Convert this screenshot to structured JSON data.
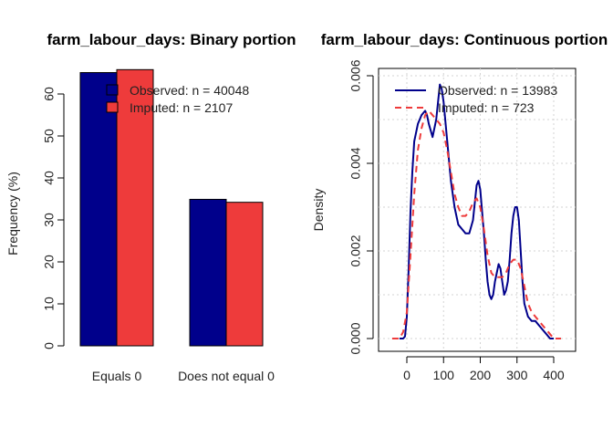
{
  "chart_data": [
    {
      "type": "bar",
      "title": "farm_labour_days: Binary portion",
      "xlabel": "",
      "ylabel": "Frequency (%)",
      "ylim": [
        0,
        65
      ],
      "yticks": [
        0,
        10,
        20,
        30,
        40,
        50,
        60
      ],
      "categories": [
        "Equals 0",
        "Does not equal 0"
      ],
      "series": [
        {
          "name": "Observed: n = 40048",
          "color": "#00008B",
          "values": [
            65.1,
            34.9
          ]
        },
        {
          "name": "Imputed: n = 2107",
          "color": "#EE3B3B",
          "values": [
            65.8,
            34.2
          ]
        }
      ],
      "legend": "top-right",
      "grid": false
    },
    {
      "type": "line",
      "title": "farm_labour_days: Continuous portion",
      "xlabel": "",
      "ylabel": "Density",
      "xlim": [
        -55,
        430
      ],
      "ylim": [
        -0.0001,
        0.006
      ],
      "xticks": [
        0,
        100,
        200,
        300,
        400
      ],
      "yticks": [
        0.0,
        0.002,
        0.004,
        0.006
      ],
      "ytick_labels": [
        "0.000",
        "0.002",
        "0.004",
        "0.006"
      ],
      "legend": "top-right",
      "grid": true,
      "series": [
        {
          "name": "Observed: n = 13983",
          "color": "#00008B",
          "style": "solid",
          "points": [
            [
              -20,
              0
            ],
            [
              -10,
              0.0
            ],
            [
              -5,
              5e-05
            ],
            [
              0,
              0.0005
            ],
            [
              5,
              0.0016
            ],
            [
              10,
              0.0029
            ],
            [
              15,
              0.0038
            ],
            [
              20,
              0.0045
            ],
            [
              30,
              0.0049
            ],
            [
              40,
              0.0051
            ],
            [
              50,
              0.0052
            ],
            [
              55,
              0.0051
            ],
            [
              60,
              0.0049
            ],
            [
              70,
              0.0046
            ],
            [
              80,
              0.005
            ],
            [
              90,
              0.0058
            ],
            [
              95,
              0.0057
            ],
            [
              100,
              0.0054
            ],
            [
              110,
              0.0045
            ],
            [
              120,
              0.0036
            ],
            [
              130,
              0.003
            ],
            [
              140,
              0.0026
            ],
            [
              150,
              0.0025
            ],
            [
              160,
              0.0024
            ],
            [
              170,
              0.0024
            ],
            [
              180,
              0.0027
            ],
            [
              185,
              0.0031
            ],
            [
              190,
              0.0035
            ],
            [
              195,
              0.0036
            ],
            [
              200,
              0.0034
            ],
            [
              205,
              0.0029
            ],
            [
              210,
              0.0024
            ],
            [
              215,
              0.0018
            ],
            [
              220,
              0.0013
            ],
            [
              225,
              0.001
            ],
            [
              230,
              0.0009
            ],
            [
              235,
              0.001
            ],
            [
              240,
              0.0013
            ],
            [
              245,
              0.0015
            ],
            [
              250,
              0.0017
            ],
            [
              255,
              0.0016
            ],
            [
              260,
              0.0013
            ],
            [
              265,
              0.001
            ],
            [
              270,
              0.0011
            ],
            [
              275,
              0.0013
            ],
            [
              280,
              0.0018
            ],
            [
              285,
              0.0024
            ],
            [
              290,
              0.0028
            ],
            [
              295,
              0.003
            ],
            [
              300,
              0.003
            ],
            [
              305,
              0.0027
            ],
            [
              310,
              0.002
            ],
            [
              315,
              0.0013
            ],
            [
              320,
              0.0008
            ],
            [
              330,
              0.0005
            ],
            [
              340,
              0.0004
            ],
            [
              350,
              0.0004
            ],
            [
              360,
              0.0003
            ],
            [
              370,
              0.0002
            ],
            [
              380,
              0.0001
            ],
            [
              390,
              0.0
            ],
            [
              400,
              0.0
            ]
          ]
        },
        {
          "name": "Imputed: n = 723",
          "color": "#EE3B3B",
          "style": "dashed",
          "points": [
            [
              -40,
              0
            ],
            [
              -20,
              0.0
            ],
            [
              -10,
              0.00015
            ],
            [
              0,
              0.0006
            ],
            [
              10,
              0.0019
            ],
            [
              20,
              0.0033
            ],
            [
              30,
              0.0043
            ],
            [
              40,
              0.0048
            ],
            [
              50,
              0.0051
            ],
            [
              60,
              0.0052
            ],
            [
              70,
              0.0051
            ],
            [
              80,
              0.005
            ],
            [
              90,
              0.0049
            ],
            [
              100,
              0.0047
            ],
            [
              110,
              0.0043
            ],
            [
              120,
              0.0038
            ],
            [
              130,
              0.0033
            ],
            [
              140,
              0.003
            ],
            [
              150,
              0.0028
            ],
            [
              160,
              0.0028
            ],
            [
              170,
              0.0029
            ],
            [
              180,
              0.0031
            ],
            [
              190,
              0.0032
            ],
            [
              200,
              0.003
            ],
            [
              210,
              0.0025
            ],
            [
              220,
              0.0019
            ],
            [
              230,
              0.0015
            ],
            [
              240,
              0.0014
            ],
            [
              250,
              0.0014
            ],
            [
              260,
              0.0014
            ],
            [
              270,
              0.0015
            ],
            [
              280,
              0.0017
            ],
            [
              290,
              0.0018
            ],
            [
              300,
              0.0018
            ],
            [
              310,
              0.0016
            ],
            [
              320,
              0.0012
            ],
            [
              330,
              0.0008
            ],
            [
              340,
              0.0006
            ],
            [
              350,
              0.0005
            ],
            [
              360,
              0.0004
            ],
            [
              370,
              0.0003
            ],
            [
              380,
              0.0002
            ],
            [
              390,
              0.0001
            ],
            [
              400,
              0.0
            ],
            [
              420,
              0.0
            ]
          ]
        }
      ]
    }
  ]
}
